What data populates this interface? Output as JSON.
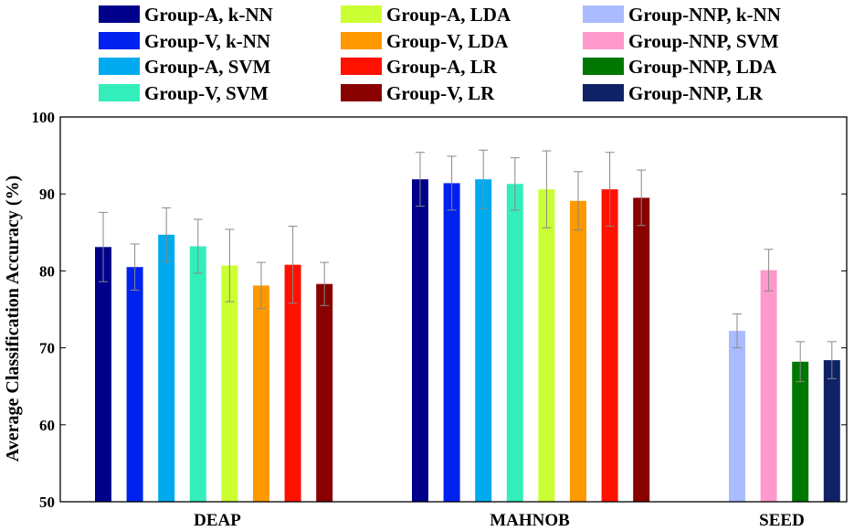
{
  "chart_data": {
    "type": "bar",
    "ylabel": "Average Classification Accuracy (%)",
    "xlabel": "",
    "ylim": [
      50,
      100
    ],
    "yticks": [
      "50",
      "60",
      "70",
      "80",
      "90",
      "100"
    ],
    "categories": [
      "DEAP",
      "MAHNOB",
      "SEED"
    ],
    "legend_position": "top",
    "series": [
      {
        "name": "Group-A, k-NN",
        "color": "#00008b",
        "category": "DEAP",
        "value": 83.1,
        "error": 4.5
      },
      {
        "name": "Group-V, k-NN",
        "color": "#0022ee",
        "category": "DEAP",
        "value": 80.5,
        "error": 3.0
      },
      {
        "name": "Group-A, SVM",
        "color": "#00aaee",
        "category": "DEAP",
        "value": 84.7,
        "error": 3.5
      },
      {
        "name": "Group-V, SVM",
        "color": "#33eebb",
        "category": "DEAP",
        "value": 83.2,
        "error": 3.5
      },
      {
        "name": "Group-A, LDA",
        "color": "#ccff33",
        "category": "DEAP",
        "value": 80.7,
        "error": 4.7
      },
      {
        "name": "Group-V, LDA",
        "color": "#ff9900",
        "category": "DEAP",
        "value": 78.1,
        "error": 3.0
      },
      {
        "name": "Group-A, LR",
        "color": "#ff1100",
        "category": "DEAP",
        "value": 80.8,
        "error": 5.0
      },
      {
        "name": "Group-V, LR",
        "color": "#880000",
        "category": "DEAP",
        "value": 78.3,
        "error": 2.8
      },
      {
        "name": "Group-A, k-NN",
        "color": "#00008b",
        "category": "MAHNOB",
        "value": 91.9,
        "error": 3.5
      },
      {
        "name": "Group-V, k-NN",
        "color": "#0022ee",
        "category": "MAHNOB",
        "value": 91.4,
        "error": 3.5
      },
      {
        "name": "Group-A, SVM",
        "color": "#00aaee",
        "category": "MAHNOB",
        "value": 91.9,
        "error": 3.8
      },
      {
        "name": "Group-V, SVM",
        "color": "#33eebb",
        "category": "MAHNOB",
        "value": 91.3,
        "error": 3.4
      },
      {
        "name": "Group-A, LDA",
        "color": "#ccff33",
        "category": "MAHNOB",
        "value": 90.6,
        "error": 5.0
      },
      {
        "name": "Group-V, LDA",
        "color": "#ff9900",
        "category": "MAHNOB",
        "value": 89.1,
        "error": 3.8
      },
      {
        "name": "Group-A, LR",
        "color": "#ff1100",
        "category": "MAHNOB",
        "value": 90.6,
        "error": 4.8
      },
      {
        "name": "Group-V, LR",
        "color": "#880000",
        "category": "MAHNOB",
        "value": 89.5,
        "error": 3.6
      },
      {
        "name": "Group-NNP, k-NN",
        "color": "#aabbff",
        "category": "SEED",
        "value": 72.2,
        "error": 2.2
      },
      {
        "name": "Group-NNP, SVM",
        "color": "#ff99cc",
        "category": "SEED",
        "value": 80.1,
        "error": 2.7
      },
      {
        "name": "Group-NNP, LDA",
        "color": "#007700",
        "category": "SEED",
        "value": 68.2,
        "error": 2.6
      },
      {
        "name": "Group-NNP, LR",
        "color": "#102266",
        "category": "SEED",
        "value": 68.4,
        "error": 2.4
      }
    ],
    "legend": [
      {
        "label": "Group-A, k-NN",
        "color": "#00008b"
      },
      {
        "label": "Group-V, k-NN",
        "color": "#0022ee"
      },
      {
        "label": "Group-A, SVM",
        "color": "#00aaee"
      },
      {
        "label": "Group-V, SVM",
        "color": "#33eebb"
      },
      {
        "label": "Group-A, LDA",
        "color": "#ccff33"
      },
      {
        "label": "Group-V, LDA",
        "color": "#ff9900"
      },
      {
        "label": "Group-A, LR",
        "color": "#ff1100"
      },
      {
        "label": "Group-V, LR",
        "color": "#880000"
      },
      {
        "label": "Group-NNP, k-NN",
        "color": "#aabbff"
      },
      {
        "label": "Group-NNP, SVM",
        "color": "#ff99cc"
      },
      {
        "label": "Group-NNP, LDA",
        "color": "#007700"
      },
      {
        "label": "Group-NNP, LR",
        "color": "#102266"
      }
    ]
  }
}
